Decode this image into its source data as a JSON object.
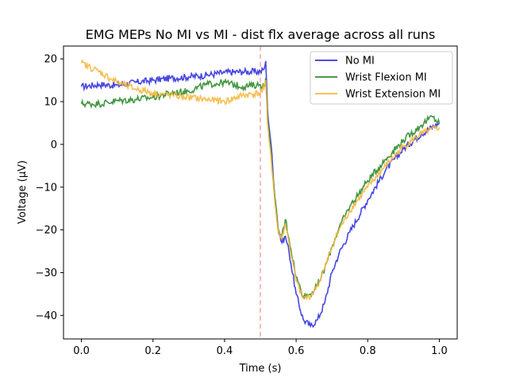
{
  "chart_data": {
    "type": "line",
    "title": "EMG MEPs No MI vs MI - dist flx average across all runs",
    "xlabel": "Time (s)",
    "ylabel": "Voltage (μV)",
    "xlim": [
      -0.05,
      1.05
    ],
    "ylim": [
      -45.5,
      23.0
    ],
    "xticks": [
      0.0,
      0.2,
      0.4,
      0.6,
      0.8,
      1.0
    ],
    "xtick_labels": [
      "0.0",
      "0.2",
      "0.4",
      "0.6",
      "0.8",
      "1.0"
    ],
    "yticks": [
      -40,
      -30,
      -20,
      -10,
      0,
      10,
      20
    ],
    "ytick_labels": [
      "−40",
      "−30",
      "−20",
      "−10",
      "0",
      "10",
      "20"
    ],
    "grid": false,
    "legend": "top-right",
    "marker_line": {
      "x": 0.5,
      "color": "#f4a6a6",
      "style": "dashed"
    },
    "series": [
      {
        "name": "No MI",
        "color": "#3333dd",
        "x": [
          0.0,
          0.05,
          0.1,
          0.15,
          0.2,
          0.25,
          0.3,
          0.35,
          0.4,
          0.45,
          0.5,
          0.51,
          0.515,
          0.52,
          0.53,
          0.54,
          0.55,
          0.56,
          0.57,
          0.58,
          0.6,
          0.62,
          0.64,
          0.66,
          0.68,
          0.7,
          0.72,
          0.75,
          0.8,
          0.85,
          0.9,
          0.95,
          1.0
        ],
        "y": [
          13.5,
          14.0,
          13.8,
          14.5,
          15.0,
          15.5,
          15.8,
          16.2,
          16.8,
          17.0,
          17.0,
          17.5,
          19.5,
          8.0,
          0.0,
          -12.0,
          -20.0,
          -23.0,
          -21.5,
          -25.0,
          -35.0,
          -41.0,
          -42.5,
          -41.0,
          -37.0,
          -30.0,
          -25.5,
          -20.5,
          -13.0,
          -6.0,
          -1.0,
          2.5,
          5.0
        ]
      },
      {
        "name": "Wrist Flexion MI",
        "color": "#2e8b2e",
        "x": [
          0.0,
          0.05,
          0.1,
          0.15,
          0.2,
          0.25,
          0.3,
          0.35,
          0.4,
          0.45,
          0.5,
          0.51,
          0.515,
          0.52,
          0.53,
          0.54,
          0.55,
          0.56,
          0.57,
          0.58,
          0.6,
          0.62,
          0.64,
          0.66,
          0.68,
          0.7,
          0.72,
          0.75,
          0.8,
          0.85,
          0.9,
          0.95,
          0.98,
          1.0
        ],
        "y": [
          9.5,
          9.5,
          10.2,
          10.5,
          11.0,
          12.0,
          12.5,
          14.0,
          14.5,
          13.5,
          14.0,
          13.5,
          15.5,
          6.0,
          -2.0,
          -12.0,
          -20.0,
          -21.5,
          -17.5,
          -22.0,
          -31.0,
          -35.5,
          -35.0,
          -33.0,
          -29.0,
          -24.0,
          -19.5,
          -14.5,
          -8.5,
          -3.5,
          1.0,
          4.5,
          6.5,
          5.0
        ]
      },
      {
        "name": "Wrist Extension MI",
        "color": "#f5b840",
        "x": [
          0.0,
          0.05,
          0.1,
          0.15,
          0.2,
          0.25,
          0.3,
          0.35,
          0.4,
          0.45,
          0.5,
          0.51,
          0.515,
          0.52,
          0.53,
          0.54,
          0.55,
          0.56,
          0.57,
          0.58,
          0.6,
          0.62,
          0.64,
          0.66,
          0.68,
          0.7,
          0.72,
          0.75,
          0.8,
          0.85,
          0.9,
          0.95,
          1.0
        ],
        "y": [
          19.0,
          17.0,
          14.5,
          13.0,
          12.0,
          11.5,
          11.0,
          10.5,
          10.0,
          11.5,
          12.0,
          13.0,
          15.0,
          5.0,
          -3.0,
          -13.0,
          -20.5,
          -22.0,
          -18.5,
          -23.0,
          -32.0,
          -36.0,
          -35.5,
          -33.0,
          -29.0,
          -24.0,
          -20.0,
          -15.5,
          -10.0,
          -5.0,
          -0.5,
          2.5,
          4.0
        ]
      }
    ]
  }
}
